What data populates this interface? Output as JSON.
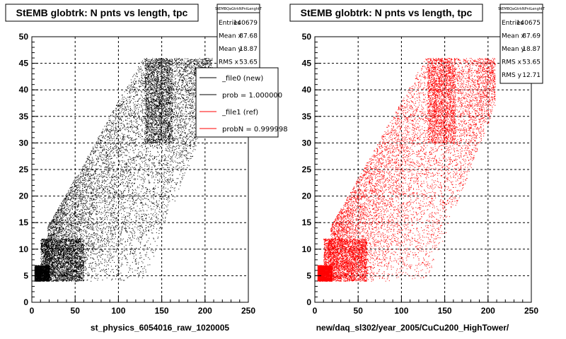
{
  "chart_data": [
    {
      "type": "scatter",
      "title": "StEMB globtrk: N pnts vs length, tpc",
      "xlabel": "st_physics_6054016_raw_1020005",
      "ylabel": "",
      "xlim": [
        0,
        250
      ],
      "ylim": [
        0,
        50
      ],
      "xticks": [
        "0",
        "50",
        "100",
        "150",
        "200",
        "250"
      ],
      "yticks": [
        "0",
        "5",
        "10",
        "15",
        "20",
        "25",
        "30",
        "35",
        "40",
        "45",
        "50"
      ],
      "grid": true,
      "color": "#000000",
      "stats": {
        "name": "StEMBQaGtrkNPntLenghtT",
        "rows": [
          {
            "label": "Entries",
            "value": "140679"
          },
          {
            "label": "Mean x",
            "value": "87.68"
          },
          {
            "label": "Mean y",
            "value": "18.87"
          },
          {
            "label": "RMS x",
            "value": "53.65"
          }
        ]
      },
      "legend": {
        "placement": "top-right",
        "entries": [
          {
            "label": "_file0 (new)",
            "color": "#000000"
          },
          {
            "label": "prob = 1.000000",
            "color": "#000000"
          },
          {
            "label": "_file1 (ref)",
            "color": "#ff0000"
          },
          {
            "label": "probN = 0.999998",
            "color": "#ff0000"
          }
        ]
      }
    },
    {
      "type": "scatter",
      "title": "StEMB globtrk: N pnts vs length, tpc",
      "xlabel": "new/daq_sl302/year_2005/CuCu200_HighTower/",
      "ylabel": "",
      "xlim": [
        0,
        250
      ],
      "ylim": [
        0,
        50
      ],
      "xticks": [
        "0",
        "50",
        "100",
        "150",
        "200",
        "250"
      ],
      "yticks": [
        "0",
        "5",
        "10",
        "15",
        "20",
        "25",
        "30",
        "35",
        "40",
        "45",
        "50"
      ],
      "grid": true,
      "color": "#ff0000",
      "stats": {
        "name": "StEMBQaGtrkNPntLenghtT",
        "rows": [
          {
            "label": "Entries",
            "value": "140675"
          },
          {
            "label": "Mean x",
            "value": "87.69"
          },
          {
            "label": "Mean y",
            "value": "18.87"
          },
          {
            "label": "RMS x",
            "value": "53.65"
          },
          {
            "label": "RMS y",
            "value": "12.71"
          }
        ]
      }
    }
  ]
}
